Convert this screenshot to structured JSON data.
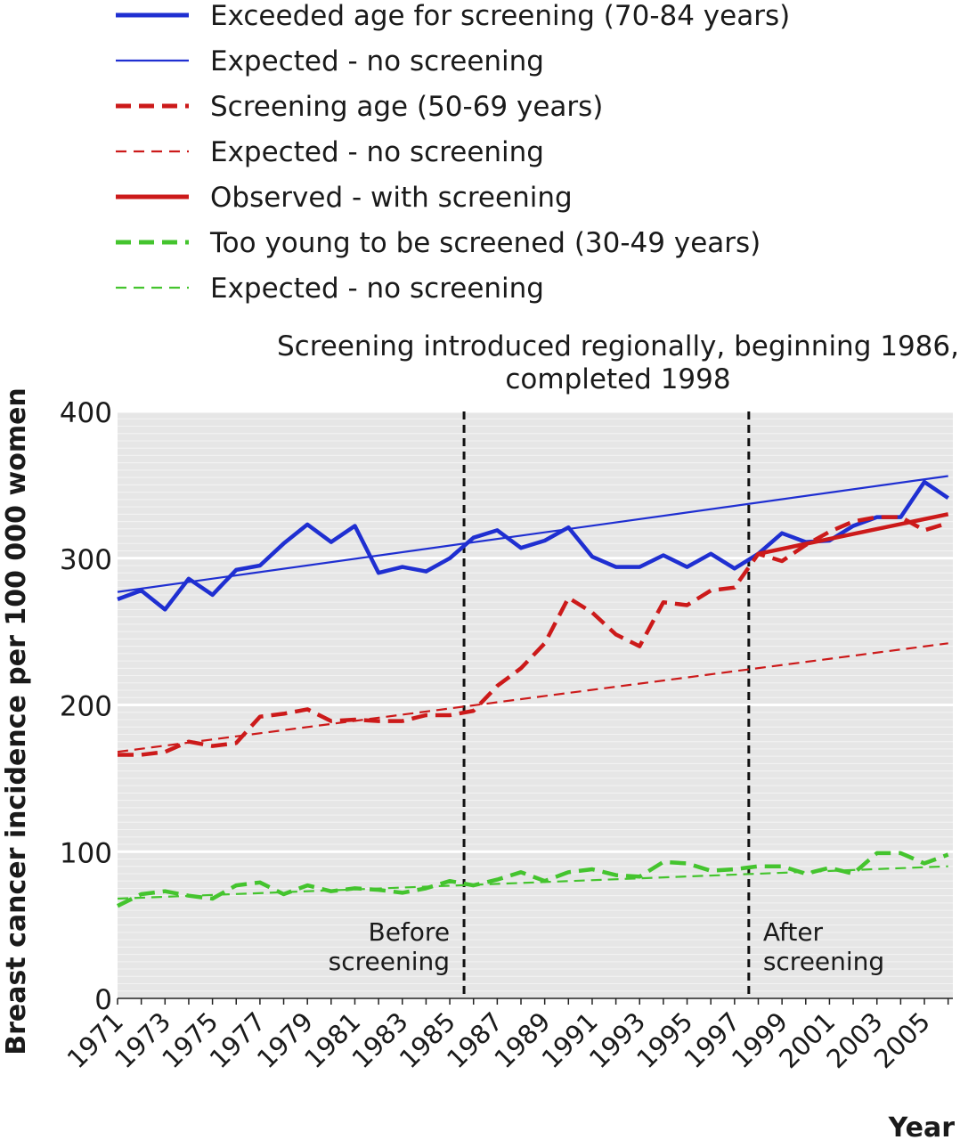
{
  "chart_data": {
    "type": "line",
    "title": "Screening introduced regionally, beginning 1986,",
    "subtitle": "completed 1998",
    "xlabel": "Year",
    "ylabel": "Breast cancer incidence per 100 000 women",
    "ylim": [
      0,
      400
    ],
    "yticks": [
      0,
      100,
      200,
      300,
      400
    ],
    "xlim": [
      1971,
      2005
    ],
    "xtick_labels": [
      "1971",
      "1973",
      "1975",
      "1977",
      "1979",
      "1981",
      "1983",
      "1985",
      "1987",
      "1989",
      "1991",
      "1993",
      "1995",
      "1997",
      "1999",
      "2001",
      "2003",
      "2005"
    ],
    "grid": true,
    "legend_position": "top",
    "vlines": [
      {
        "x": 1985.6,
        "label": [
          "Before",
          "screening"
        ],
        "label_side": "left"
      },
      {
        "x": 1997.6,
        "label": [
          "After",
          "screening"
        ],
        "label_side": "right"
      }
    ],
    "series": [
      {
        "name": "Exceeded age for screening (70-84 years)",
        "color": "#1f2fd1",
        "style": "solid",
        "width": "thick",
        "x": [
          1971,
          1972,
          1973,
          1974,
          1975,
          1976,
          1977,
          1978,
          1979,
          1980,
          1981,
          1982,
          1983,
          1984,
          1985,
          1986,
          1987,
          1988,
          1989,
          1990,
          1991,
          1992,
          1993,
          1994,
          1995,
          1996,
          1997,
          1998,
          1999,
          2000,
          2001,
          2002,
          2003,
          2004,
          2005,
          2006
        ],
        "values": [
          272,
          278,
          265,
          286,
          275,
          292,
          295,
          310,
          323,
          311,
          322,
          290,
          294,
          291,
          300,
          314,
          319,
          307,
          312,
          321,
          301,
          294,
          294,
          302,
          294,
          303,
          293,
          303,
          317,
          311,
          312,
          322,
          328,
          328,
          352,
          341
        ]
      },
      {
        "name": "Expected - no screening",
        "color": "#1f2fd1",
        "style": "solid",
        "width": "thin",
        "x": [
          1971,
          2006
        ],
        "values": [
          277,
          356
        ]
      },
      {
        "name": "Screening age (50-69 years)",
        "color": "#cc1a1a",
        "style": "dashed",
        "width": "thick",
        "x": [
          1971,
          1972,
          1973,
          1974,
          1975,
          1976,
          1977,
          1978,
          1979,
          1980,
          1981,
          1982,
          1983,
          1984,
          1985,
          1986,
          1987,
          1988,
          1989,
          1990,
          1991,
          1992,
          1993,
          1994,
          1995,
          1996,
          1997,
          1998,
          1999,
          2000,
          2001,
          2002,
          2003,
          2004,
          2005,
          2006
        ],
        "values": [
          166,
          166,
          168,
          175,
          172,
          174,
          192,
          194,
          197,
          189,
          190,
          189,
          189,
          193,
          193,
          196,
          213,
          225,
          242,
          273,
          263,
          248,
          240,
          270,
          268,
          278,
          280,
          303,
          298,
          309,
          318,
          325,
          328,
          328,
          319,
          324
        ]
      },
      {
        "name": "Expected - no screening",
        "color": "#cc1a1a",
        "style": "dashed",
        "width": "thin",
        "x": [
          1971,
          2006
        ],
        "values": [
          168,
          242
        ]
      },
      {
        "name": "Observed - with screening",
        "color": "#cc1a1a",
        "style": "solid",
        "width": "thick",
        "x": [
          1998,
          2006
        ],
        "values": [
          303,
          330
        ]
      },
      {
        "name": "Too young to be screened (30-49 years)",
        "color": "#44c42e",
        "style": "dashed",
        "width": "thick",
        "x": [
          1971,
          1972,
          1973,
          1974,
          1975,
          1976,
          1977,
          1978,
          1979,
          1980,
          1981,
          1982,
          1983,
          1984,
          1985,
          1986,
          1987,
          1988,
          1989,
          1990,
          1991,
          1992,
          1993,
          1994,
          1995,
          1996,
          1997,
          1998,
          1999,
          2000,
          2001,
          2002,
          2003,
          2004,
          2005,
          2006
        ],
        "values": [
          63,
          71,
          73,
          70,
          68,
          77,
          79,
          71,
          77,
          73,
          75,
          74,
          72,
          75,
          80,
          77,
          81,
          86,
          80,
          86,
          88,
          84,
          83,
          93,
          92,
          87,
          88,
          90,
          90,
          85,
          89,
          85,
          99,
          99,
          92,
          98
        ]
      },
      {
        "name": "Expected - no screening",
        "color": "#44c42e",
        "style": "dashed",
        "width": "thin",
        "x": [
          1971,
          2006
        ],
        "values": [
          68,
          90
        ]
      }
    ]
  }
}
